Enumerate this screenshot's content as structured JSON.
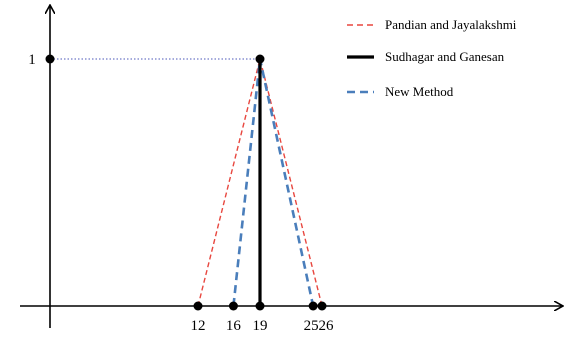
{
  "chart_data": {
    "type": "line",
    "title": "",
    "xlabel": "",
    "ylabel": "",
    "xlim": [
      10,
      28
    ],
    "ylim": [
      0,
      1
    ],
    "x_ticks": [
      "12",
      "16",
      "19",
      "25",
      "26"
    ],
    "y_ticks": [
      "1"
    ],
    "grid": false,
    "legend_position": "top-right",
    "series": [
      {
        "name": "Pandian and Jayalakshmi",
        "color": "#e8473f",
        "style": "dashed",
        "points": [
          [
            12,
            0
          ],
          [
            19,
            1
          ],
          [
            26,
            0
          ]
        ]
      },
      {
        "name": "Sudhagar and Ganesan",
        "color": "#000000",
        "style": "solid",
        "points": [
          [
            19,
            0
          ],
          [
            19,
            1
          ]
        ]
      },
      {
        "name": "New Method",
        "color": "#4a7ebb",
        "style": "dashed",
        "points": [
          [
            16,
            0
          ],
          [
            19,
            1
          ],
          [
            25,
            0
          ]
        ]
      }
    ],
    "reference_line": {
      "color": "#6f79c8",
      "style": "dotted",
      "points": [
        [
          0,
          1
        ],
        [
          19,
          1
        ]
      ]
    }
  }
}
